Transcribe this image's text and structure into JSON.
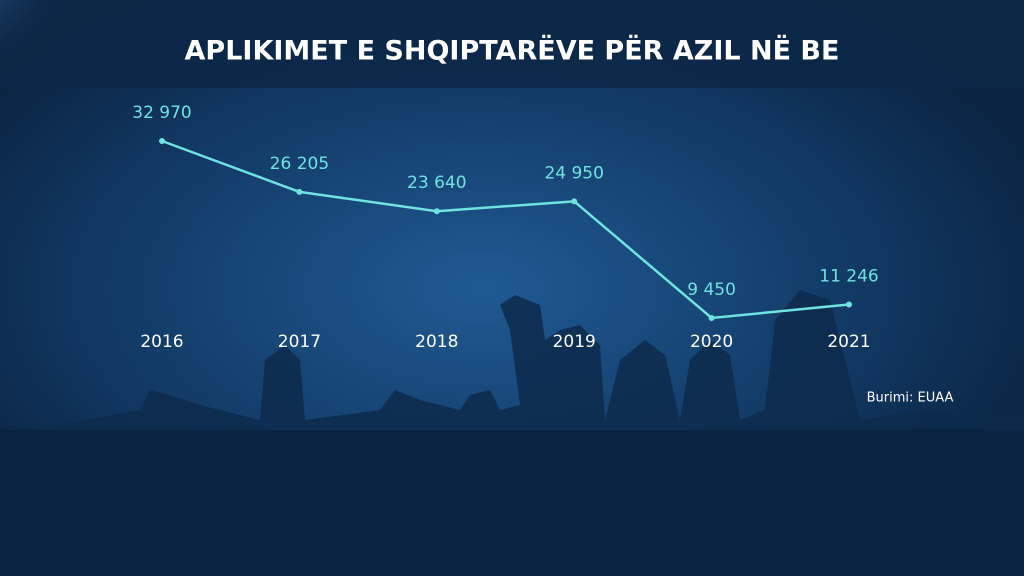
{
  "chart_data": {
    "type": "line",
    "title": "APLIKIMET E SHQIPTARËVE PËR AZIL NË BE",
    "categories": [
      "2016",
      "2017",
      "2018",
      "2019",
      "2020",
      "2021"
    ],
    "values": [
      32970,
      26205,
      23640,
      24950,
      9450,
      11246
    ],
    "value_labels": [
      "32 970",
      "26 205",
      "23 640",
      "24 950",
      "9 450",
      "11 246"
    ],
    "color": "#6fe3e0",
    "source": "Burimi: EUAA"
  }
}
